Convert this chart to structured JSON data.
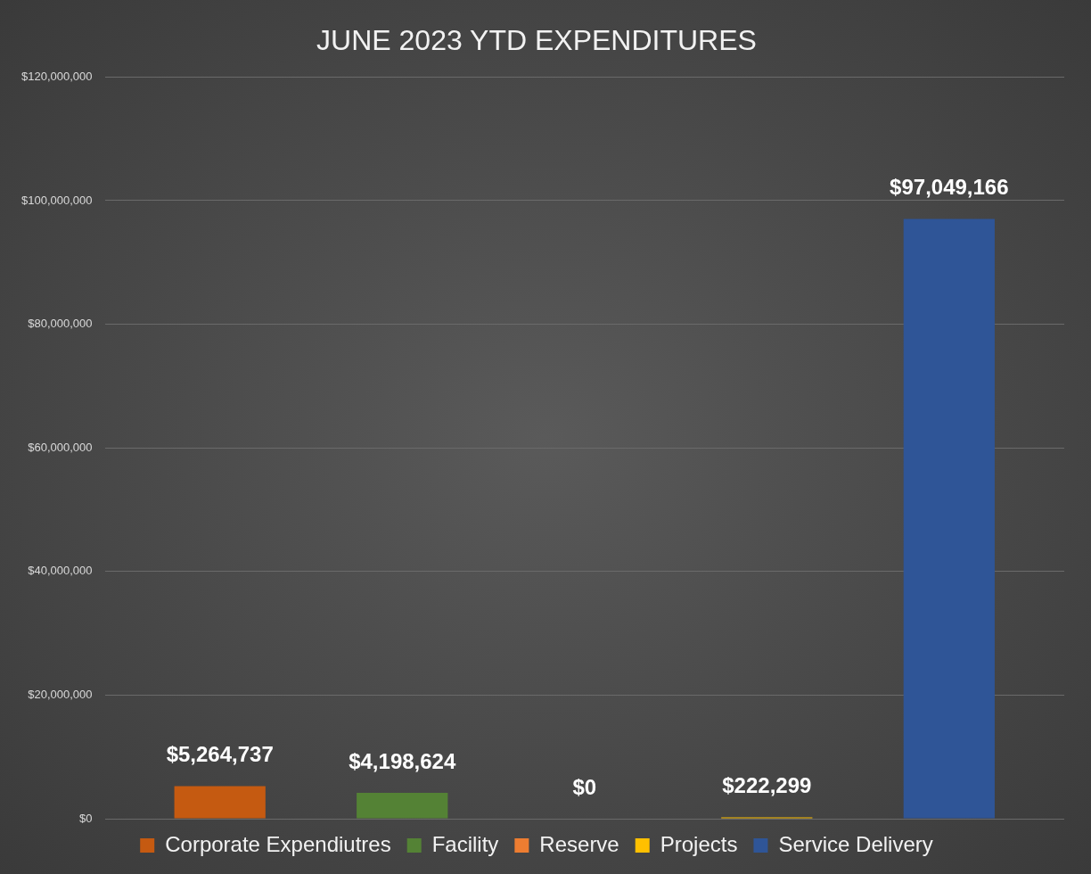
{
  "chart_data": {
    "type": "bar",
    "title": "JUNE 2023 YTD EXPENDITURES",
    "categories": [
      null
    ],
    "series": [
      {
        "name": "Corporate Expendiutres",
        "color": "#c55a11",
        "values": [
          5264737
        ],
        "value_labels": [
          "$5,264,737"
        ]
      },
      {
        "name": "Facility",
        "color": "#548235",
        "values": [
          4198624
        ],
        "value_labels": [
          "$4,198,624"
        ]
      },
      {
        "name": "Reserve",
        "color": "#ed7d31",
        "values": [
          0
        ],
        "value_labels": [
          "$0"
        ]
      },
      {
        "name": "Projects",
        "color": "#ffc000",
        "values": [
          222299
        ],
        "value_labels": [
          "$222,299"
        ]
      },
      {
        "name": "Service Delivery",
        "color": "#2f5597",
        "values": [
          97049166
        ],
        "value_labels": [
          "$97,049,166"
        ]
      }
    ],
    "ylim": [
      0,
      120000000
    ],
    "yticks": [
      {
        "value": 0,
        "label": "$0"
      },
      {
        "value": 20000000,
        "label": "$20,000,000"
      },
      {
        "value": 40000000,
        "label": "$40,000,000"
      },
      {
        "value": 60000000,
        "label": "$60,000,000"
      },
      {
        "value": 80000000,
        "label": "$80,000,000"
      },
      {
        "value": 100000000,
        "label": "$100,000,000"
      },
      {
        "value": 120000000,
        "label": "$120,000,000"
      }
    ],
    "grid": "y",
    "legend": "bottom",
    "tick_labels": "y"
  }
}
